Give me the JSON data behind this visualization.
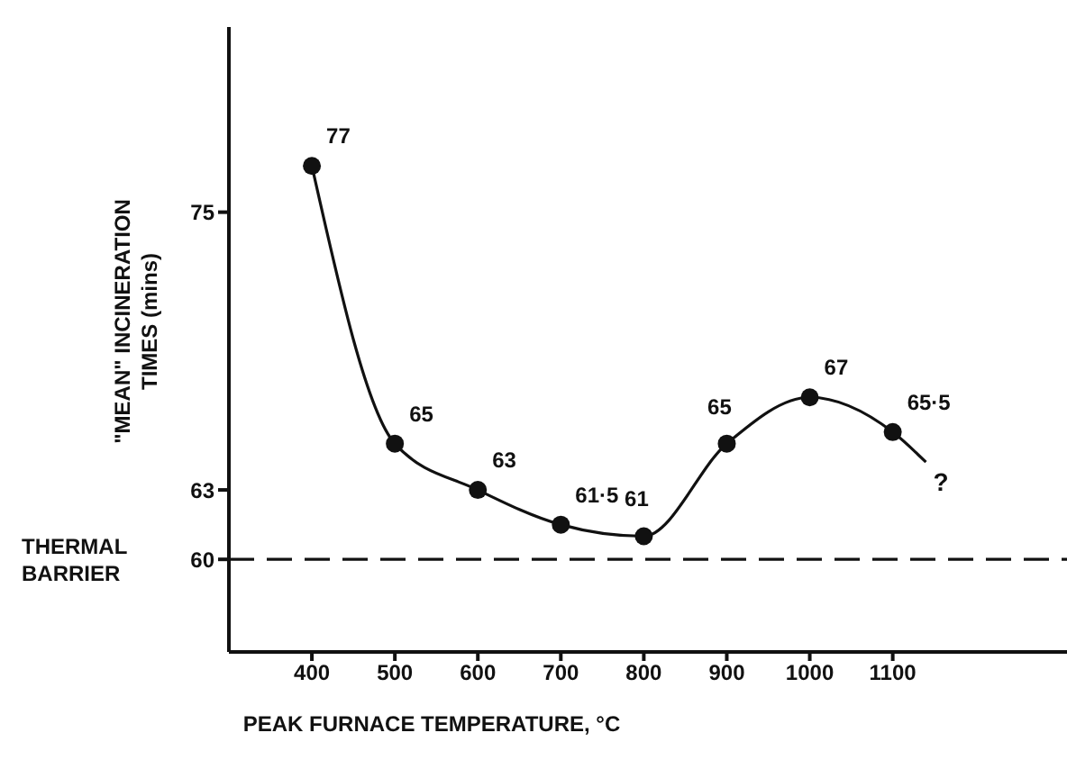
{
  "chart_data": {
    "type": "line",
    "xlabel": "PEAK FURNACE TEMPERATURE, °C",
    "ylabel": "\"MEAN\" INCINERATION TIMES (mins)",
    "xlim": [
      300,
      1310
    ],
    "xticks": [
      400,
      500,
      600,
      700,
      800,
      900,
      1000,
      1100
    ],
    "ylim": [
      56,
      83
    ],
    "yticks": [
      60,
      63,
      75
    ],
    "series": [
      {
        "marker": "none",
        "color": "#111111",
        "x": [
          400,
          500,
          600,
          700,
          800,
          900,
          1000,
          1100,
          1140
        ],
        "values": [
          77,
          65,
          63,
          61.5,
          61,
          65,
          67,
          65.5,
          64.2
        ]
      },
      {
        "type": "scatter",
        "marker": "circle",
        "color": "#111111",
        "x": [
          400,
          500,
          600,
          700,
          800,
          900,
          1000,
          1100
        ],
        "values": [
          77,
          65,
          63,
          61.5,
          61,
          65,
          67,
          65.5
        ],
        "value_labels": [
          "77",
          "65",
          "63",
          "61·5",
          "61",
          "65",
          "67",
          "65·5"
        ]
      }
    ],
    "ref_lines": [
      {
        "axis": "y",
        "value": 60,
        "label": "THERMAL BARRIER",
        "line_style": "dashed",
        "color": "#111111"
      }
    ],
    "annotations": [
      "?"
    ],
    "grid": false
  }
}
